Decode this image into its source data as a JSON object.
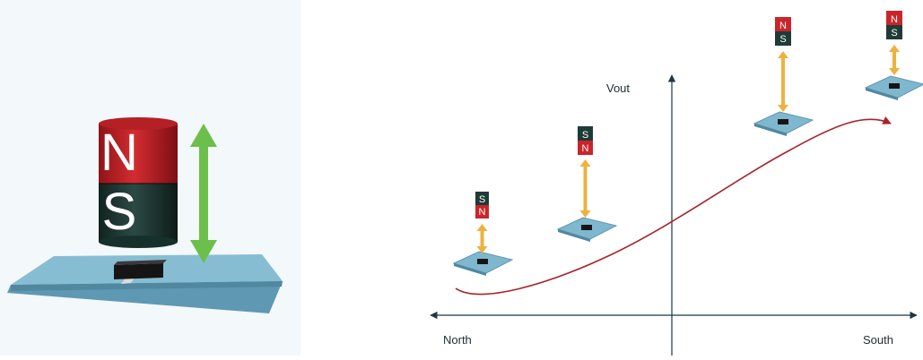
{
  "left_illustration": {
    "top_pole_label": "N",
    "bottom_pole_label": "S",
    "arrow_color": "#6cbf4a",
    "magnet_north_color": "#c9252b",
    "magnet_south_color": "#1e3b38",
    "board_color": "#7fb7cf",
    "sensor_color": "#1c1c1c",
    "background_color": "#f3f8fb"
  },
  "graph": {
    "y_axis_label": "Vout",
    "x_axis_left_label": "North",
    "x_axis_right_label": "South",
    "curve_color": "#a8232c",
    "axis_color": "#1f3644",
    "arrow_color": "#eeb140",
    "stages": [
      {
        "top_pole": "S",
        "bottom_pole": "N"
      },
      {
        "top_pole": "S",
        "bottom_pole": "N"
      },
      {
        "top_pole": "N",
        "bottom_pole": "S"
      },
      {
        "top_pole": "N",
        "bottom_pole": "S"
      }
    ]
  }
}
